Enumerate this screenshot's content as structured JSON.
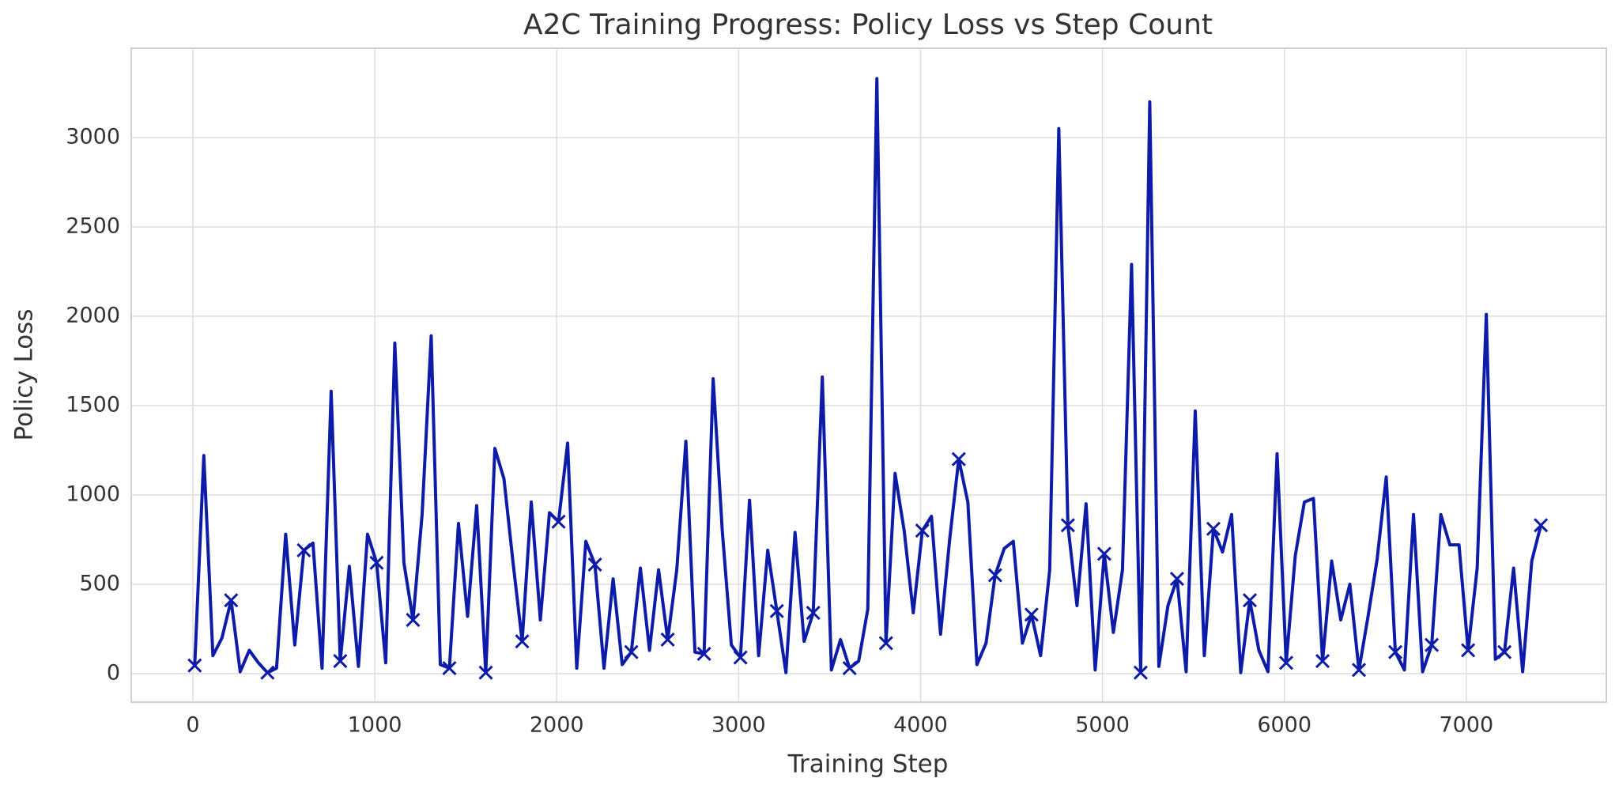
{
  "chart_data": {
    "type": "line",
    "title": "A2C Training Progress: Policy Loss vs Step Count",
    "x_label": "Training Step",
    "y_label": "Policy Loss",
    "color": "#0d1ca8",
    "marker": "x",
    "marker_every": 4,
    "grid": true,
    "xlim": [
      -339,
      7770
    ],
    "ylim": [
      -160,
      3500
    ],
    "xticks": [
      0,
      1000,
      2000,
      3000,
      4000,
      5000,
      6000,
      7000
    ],
    "yticks": [
      0,
      500,
      1000,
      1500,
      2000,
      2500,
      3000
    ],
    "x": [
      10,
      60,
      110,
      160,
      210,
      260,
      310,
      360,
      410,
      460,
      510,
      560,
      610,
      660,
      710,
      760,
      810,
      860,
      910,
      960,
      1010,
      1060,
      1110,
      1160,
      1210,
      1260,
      1310,
      1360,
      1410,
      1460,
      1510,
      1560,
      1610,
      1660,
      1710,
      1760,
      1810,
      1860,
      1910,
      1960,
      2010,
      2060,
      2110,
      2160,
      2210,
      2260,
      2310,
      2360,
      2410,
      2460,
      2510,
      2560,
      2610,
      2660,
      2710,
      2760,
      2810,
      2860,
      2910,
      2960,
      3010,
      3060,
      3110,
      3160,
      3210,
      3260,
      3310,
      3360,
      3410,
      3460,
      3510,
      3560,
      3610,
      3660,
      3710,
      3760,
      3810,
      3860,
      3910,
      3960,
      4010,
      4060,
      4110,
      4160,
      4210,
      4260,
      4310,
      4360,
      4410,
      4460,
      4510,
      4560,
      4610,
      4660,
      4710,
      4760,
      4810,
      4860,
      4910,
      4960,
      5010,
      5060,
      5110,
      5160,
      5210,
      5260,
      5310,
      5360,
      5410,
      5460,
      5510,
      5560,
      5610,
      5660,
      5710,
      5760,
      5810,
      5860,
      5910,
      5960,
      6010,
      6060,
      6110,
      6160,
      6210,
      6260,
      6310,
      6360,
      6410,
      6460,
      6510,
      6560,
      6610,
      6660,
      6710,
      6760,
      6810,
      6860,
      6910,
      6960,
      7010,
      7060,
      7110,
      7160,
      7210,
      7260,
      7310,
      7360,
      7410
    ],
    "values": [
      45,
      1220,
      100,
      200,
      410,
      10,
      130,
      60,
      5,
      30,
      780,
      160,
      690,
      730,
      30,
      1580,
      70,
      600,
      40,
      780,
      620,
      60,
      1850,
      620,
      300,
      890,
      1890,
      50,
      30,
      840,
      320,
      940,
      5,
      1260,
      1090,
      620,
      180,
      960,
      300,
      900,
      850,
      1290,
      30,
      740,
      610,
      30,
      530,
      50,
      120,
      590,
      130,
      580,
      190,
      580,
      1300,
      120,
      110,
      1650,
      800,
      160,
      90,
      970,
      100,
      690,
      350,
      5,
      790,
      180,
      340,
      1660,
      20,
      190,
      30,
      70,
      360,
      3330,
      170,
      1120,
      800,
      340,
      800,
      880,
      220,
      750,
      1200,
      960,
      50,
      170,
      550,
      700,
      740,
      170,
      330,
      100,
      580,
      3050,
      830,
      380,
      950,
      20,
      670,
      230,
      580,
      2290,
      5,
      3200,
      40,
      380,
      530,
      10,
      1470,
      100,
      810,
      680,
      890,
      5,
      410,
      130,
      10,
      1230,
      60,
      660,
      960,
      980,
      70,
      630,
      300,
      500,
      20,
      320,
      640,
      1100,
      120,
      20,
      890,
      10,
      160,
      890,
      720,
      720,
      130,
      590,
      2010,
      80,
      120,
      590,
      10,
      630,
      830
    ]
  }
}
